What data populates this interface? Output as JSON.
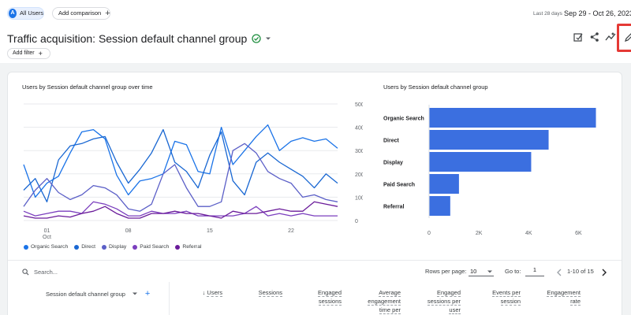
{
  "header": {
    "segment_avatar": "A",
    "segment_label": "All Users",
    "compare_label": "Add comparison",
    "date_prefix": "Last 28 days",
    "date_range": "Sep 29 - Oct 26, 2023",
    "title": "Traffic acquisition: Session default channel group",
    "add_filter": "Add filter"
  },
  "line_chart": {
    "title": "Users by Session default channel group over time",
    "y_ticks": [
      "500",
      "400",
      "300",
      "200",
      "100",
      "0"
    ],
    "x_ticks": [
      {
        "label": "01",
        "sub": "Oct"
      },
      {
        "label": "08",
        "sub": ""
      },
      {
        "label": "15",
        "sub": ""
      },
      {
        "label": "22",
        "sub": ""
      }
    ],
    "legend": [
      {
        "name": "Organic Search",
        "color": "#1a73e8"
      },
      {
        "name": "Direct",
        "color": "#1967d2"
      },
      {
        "name": "Display",
        "color": "#5b5fc7"
      },
      {
        "name": "Paid Search",
        "color": "#7b3fbe"
      },
      {
        "name": "Referral",
        "color": "#6a1b9a"
      }
    ]
  },
  "chart_data": [
    {
      "type": "line",
      "title": "Users by Session default channel group over time",
      "x": [
        "Sep 29",
        "Sep 30",
        "Oct 01",
        "Oct 02",
        "Oct 03",
        "Oct 04",
        "Oct 05",
        "Oct 06",
        "Oct 07",
        "Oct 08",
        "Oct 09",
        "Oct 10",
        "Oct 11",
        "Oct 12",
        "Oct 13",
        "Oct 14",
        "Oct 15",
        "Oct 16",
        "Oct 17",
        "Oct 18",
        "Oct 19",
        "Oct 20",
        "Oct 21",
        "Oct 22",
        "Oct 23",
        "Oct 24",
        "Oct 25",
        "Oct 26"
      ],
      "ylim": [
        0,
        500
      ],
      "series": [
        {
          "name": "Organic Search",
          "color": "#1a73e8",
          "values": [
            240,
            100,
            160,
            190,
            290,
            380,
            390,
            350,
            195,
            110,
            170,
            180,
            200,
            340,
            325,
            210,
            200,
            400,
            240,
            300,
            360,
            410,
            300,
            340,
            355,
            340,
            350,
            310
          ]
        },
        {
          "name": "Direct",
          "color": "#1967d2",
          "values": [
            130,
            180,
            80,
            260,
            320,
            330,
            350,
            360,
            250,
            160,
            220,
            290,
            390,
            250,
            210,
            140,
            280,
            380,
            170,
            110,
            250,
            290,
            250,
            220,
            190,
            140,
            200,
            160
          ]
        },
        {
          "name": "Display",
          "color": "#5b5fc7",
          "values": [
            60,
            130,
            180,
            120,
            90,
            110,
            150,
            140,
            110,
            50,
            40,
            70,
            200,
            240,
            140,
            60,
            60,
            80,
            300,
            330,
            290,
            210,
            180,
            160,
            100,
            110,
            90,
            80
          ]
        },
        {
          "name": "Paid Search",
          "color": "#7b3fbe",
          "values": [
            40,
            20,
            30,
            40,
            40,
            30,
            80,
            70,
            50,
            20,
            20,
            40,
            30,
            30,
            40,
            20,
            20,
            20,
            20,
            30,
            60,
            20,
            30,
            20,
            30,
            20,
            20,
            20
          ]
        },
        {
          "name": "Referral",
          "color": "#6a1b9a",
          "values": [
            20,
            10,
            10,
            20,
            15,
            30,
            40,
            60,
            30,
            10,
            10,
            30,
            30,
            40,
            30,
            30,
            20,
            10,
            40,
            30,
            30,
            40,
            50,
            40,
            40,
            80,
            70,
            60
          ]
        }
      ]
    },
    {
      "type": "bar",
      "title": "Users by Session default channel group",
      "categories": [
        "Organic Search",
        "Direct",
        "Display",
        "Paid Search",
        "Referral"
      ],
      "values": [
        6700,
        4800,
        4100,
        1200,
        850
      ],
      "xlim": [
        0,
        7000
      ],
      "x_ticks": [
        "0",
        "2K",
        "4K",
        "6K"
      ],
      "color": "#3b6fe0"
    }
  ],
  "table": {
    "search_placeholder": "Search...",
    "rows_per_page_label": "Rows per page:",
    "rows_per_page_value": "10",
    "goto_label": "Go to:",
    "goto_value": "1",
    "range_text": "1-10 of 15",
    "dimension_header": "Session default channel group",
    "columns": [
      {
        "l1": "Users",
        "l2": "",
        "l3": ""
      },
      {
        "l1": "Sessions",
        "l2": "",
        "l3": ""
      },
      {
        "l1": "Engaged",
        "l2": "sessions",
        "l3": ""
      },
      {
        "l1": "Average",
        "l2": "engagement",
        "l3": "time per"
      },
      {
        "l1": "Engaged",
        "l2": "sessions per",
        "l3": "user"
      },
      {
        "l1": "Events per",
        "l2": "session",
        "l3": ""
      },
      {
        "l1": "Engagement",
        "l2": "rate",
        "l3": ""
      }
    ]
  }
}
